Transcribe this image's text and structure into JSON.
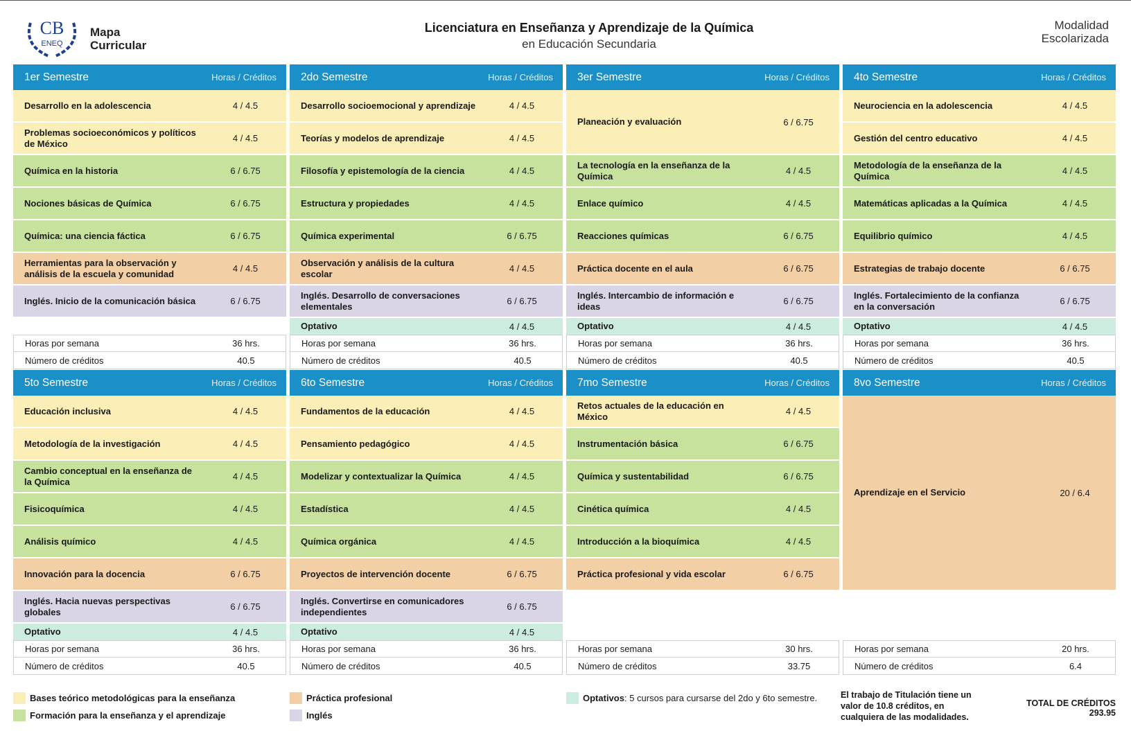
{
  "header": {
    "logo": "CB",
    "logo_sub": "ENEQ",
    "map_title": "Mapa Curricular",
    "title": "Licenciatura en Enseñanza y Aprendizaje de la Química",
    "subtitle": "en Educación Secundaria",
    "modality": "Modalidad Escolarizada"
  },
  "labels": {
    "hours_credits": "Horas / Créditos",
    "hours_per_week": "Horas por semana",
    "credits": "Número de créditos"
  },
  "semesters": [
    {
      "name": "1er Semestre",
      "courses": [
        {
          "name": "Desarrollo en la adolescencia",
          "hc": "4 / 4.5",
          "color": "#fbeeb6"
        },
        {
          "name": "Problemas socioeconómicos y políticos de México",
          "hc": "4 / 4.5",
          "color": "#fbeeb6"
        },
        {
          "name": "Química en la historia",
          "hc": "6 / 6.75",
          "color": "#c6e29d"
        },
        {
          "name": "Nociones básicas de Química",
          "hc": "6 / 6.75",
          "color": "#c6e29d"
        },
        {
          "name": "Química: una ciencia fáctica",
          "hc": "6 / 6.75",
          "color": "#c6e29d"
        },
        {
          "name": "Herramientas para la observación y análisis de la escuela y comunidad",
          "hc": "4 / 4.5",
          "color": "#f3cfa5"
        },
        {
          "name": "Inglés. Inicio de la comunicación básica",
          "hc": "6 / 6.75",
          "color": "#d9d5e7"
        }
      ],
      "optativo": null,
      "hours": "36 hrs.",
      "credits": "40.5"
    },
    {
      "name": "2do Semestre",
      "courses": [
        {
          "name": "Desarrollo socioemocional y aprendizaje",
          "hc": "4 / 4.5",
          "color": "#fbeeb6"
        },
        {
          "name": "Teorías y modelos de aprendizaje",
          "hc": "4 / 4.5",
          "color": "#fbeeb6"
        },
        {
          "name": "Filosofía y epistemología de la ciencia",
          "hc": "4 / 4.5",
          "color": "#c6e29d"
        },
        {
          "name": "Estructura y propiedades",
          "hc": "4 / 4.5",
          "color": "#c6e29d"
        },
        {
          "name": "Química experimental",
          "hc": "6 / 6.75",
          "color": "#c6e29d"
        },
        {
          "name": "Observación y análisis de la cultura escolar",
          "hc": "4 / 4.5",
          "color": "#f3cfa5"
        },
        {
          "name": "Inglés. Desarrollo de conversaciones elementales",
          "hc": "6 / 6.75",
          "color": "#d9d5e7"
        }
      ],
      "optativo": {
        "name": "Optativo",
        "hc": "4 / 4.5",
        "color": "#ccecdf"
      },
      "hours": "36 hrs.",
      "credits": "40.5"
    },
    {
      "name": "3er Semestre",
      "courses": [
        {
          "name": "Planeación y evaluación",
          "hc": "6 / 6.75",
          "color": "#fbeeb6"
        },
        {
          "name": "La tecnología en la enseñanza de la Química",
          "hc": "4 / 4.5",
          "color": "#c6e29d"
        },
        {
          "name": "Enlace químico",
          "hc": "4 / 4.5",
          "color": "#c6e29d"
        },
        {
          "name": "Reacciones químicas",
          "hc": "6 / 6.75",
          "color": "#c6e29d"
        },
        {
          "name": "Práctica docente en el aula",
          "hc": "6 / 6.75",
          "color": "#f3cfa5"
        },
        {
          "name": "Inglés. Intercambio de información e ideas",
          "hc": "6 / 6.75",
          "color": "#d9d5e7"
        }
      ],
      "optativo": {
        "name": "Optativo",
        "hc": "4 / 4.5",
        "color": "#ccecdf"
      },
      "hours": "36 hrs.",
      "credits": "40.5"
    },
    {
      "name": "4to Semestre",
      "courses": [
        {
          "name": "Neurociencia en la adolescencia",
          "hc": "4 / 4.5",
          "color": "#fbeeb6"
        },
        {
          "name": "Gestión del centro educativo",
          "hc": "4 / 4.5",
          "color": "#fbeeb6"
        },
        {
          "name": "Metodología de la enseñanza de la Química",
          "hc": "4 / 4.5",
          "color": "#c6e29d"
        },
        {
          "name": "Matemáticas aplicadas a la Química",
          "hc": "4 / 4.5",
          "color": "#c6e29d"
        },
        {
          "name": "Equilibrio químico",
          "hc": "4 / 4.5",
          "color": "#c6e29d"
        },
        {
          "name": "Estrategias de trabajo docente",
          "hc": "6 / 6.75",
          "color": "#f3cfa5"
        },
        {
          "name": "Inglés. Fortalecimiento de la confianza en la conversación",
          "hc": "6 / 6.75",
          "color": "#d9d5e7"
        }
      ],
      "optativo": {
        "name": "Optativo",
        "hc": "4 / 4.5",
        "color": "#ccecdf"
      },
      "hours": "36 hrs.",
      "credits": "40.5"
    },
    {
      "name": "5to Semestre",
      "courses": [
        {
          "name": "Educación inclusiva",
          "hc": "4 / 4.5",
          "color": "#fbeeb6"
        },
        {
          "name": "Metodología de la investigación",
          "hc": "4 / 4.5",
          "color": "#fbeeb6"
        },
        {
          "name": "Cambio conceptual en la enseñanza de la Química",
          "hc": "4 / 4.5",
          "color": "#c6e29d"
        },
        {
          "name": "Fisicoquímica",
          "hc": "4 / 4.5",
          "color": "#c6e29d"
        },
        {
          "name": "Análisis químico",
          "hc": "4 / 4.5",
          "color": "#c6e29d"
        },
        {
          "name": "Innovación para la docencia",
          "hc": "6 / 6.75",
          "color": "#f3cfa5"
        },
        {
          "name": "Inglés. Hacia nuevas perspectivas globales",
          "hc": "6 / 6.75",
          "color": "#d9d5e7"
        }
      ],
      "optativo": {
        "name": "Optativo",
        "hc": "4 / 4.5",
        "color": "#ccecdf"
      },
      "hours": "36 hrs.",
      "credits": "40.5"
    },
    {
      "name": "6to Semestre",
      "courses": [
        {
          "name": "Fundamentos de la educación",
          "hc": "4 / 4.5",
          "color": "#fbeeb6"
        },
        {
          "name": "Pensamiento pedagógico",
          "hc": "4 / 4.5",
          "color": "#fbeeb6"
        },
        {
          "name": "Modelizar y contextualizar la Química",
          "hc": "4 / 4.5",
          "color": "#c6e29d"
        },
        {
          "name": "Estadística",
          "hc": "4 / 4.5",
          "color": "#c6e29d"
        },
        {
          "name": "Química orgánica",
          "hc": "4 / 4.5",
          "color": "#c6e29d"
        },
        {
          "name": "Proyectos de intervención docente",
          "hc": "6 / 6.75",
          "color": "#f3cfa5"
        },
        {
          "name": "Inglés. Convertirse en comunicadores independientes",
          "hc": "6 / 6.75",
          "color": "#d9d5e7"
        }
      ],
      "optativo": {
        "name": "Optativo",
        "hc": "4 / 4.5",
        "color": "#ccecdf"
      },
      "hours": "36 hrs.",
      "credits": "40.5"
    },
    {
      "name": "7mo Semestre",
      "courses": [
        {
          "name": "Retos actuales de la educación en México",
          "hc": "4 / 4.5",
          "color": "#fbeeb6"
        },
        {
          "name": "Instrumentación básica",
          "hc": "6 / 6.75",
          "color": "#c6e29d"
        },
        {
          "name": "Química y sustentabilidad",
          "hc": "6 / 6.75",
          "color": "#c6e29d"
        },
        {
          "name": "Cinética química",
          "hc": "4 / 4.5",
          "color": "#c6e29d"
        },
        {
          "name": "Introducción a la bioquímica",
          "hc": "4 / 4.5",
          "color": "#c6e29d"
        },
        {
          "name": "Práctica profesional y vida escolar",
          "hc": "6 / 6.75",
          "color": "#f3cfa5"
        }
      ],
      "optativo": null,
      "hours": "30 hrs.",
      "credits": "33.75"
    },
    {
      "name": "8vo Semestre",
      "courses": [
        {
          "name": "Aprendizaje en el Servicio",
          "hc": "20 / 6.4",
          "color": "#f3cfa5"
        }
      ],
      "optativo": null,
      "hours": "20 hrs.",
      "credits": "6.4"
    }
  ],
  "legend": [
    {
      "label": "Bases teórico metodológicas para la enseñanza",
      "color": "#fbeeb6"
    },
    {
      "label": "Formación para la enseñanza y el aprendizaje",
      "color": "#c6e29d"
    },
    {
      "label": "Práctica profesional",
      "color": "#f3cfa5"
    },
    {
      "label": "Inglés",
      "color": "#d9d5e7"
    },
    {
      "label": "Optativos",
      "note": ": 5 cursos para cursarse del 2do y 6to semestre.",
      "color": "#ccecdf"
    }
  ],
  "note": "El trabajo de Titulación tiene un valor de 10.8 créditos, en cualquiera de las modalidades.",
  "total": "TOTAL DE CRÉDITOS 293.95"
}
